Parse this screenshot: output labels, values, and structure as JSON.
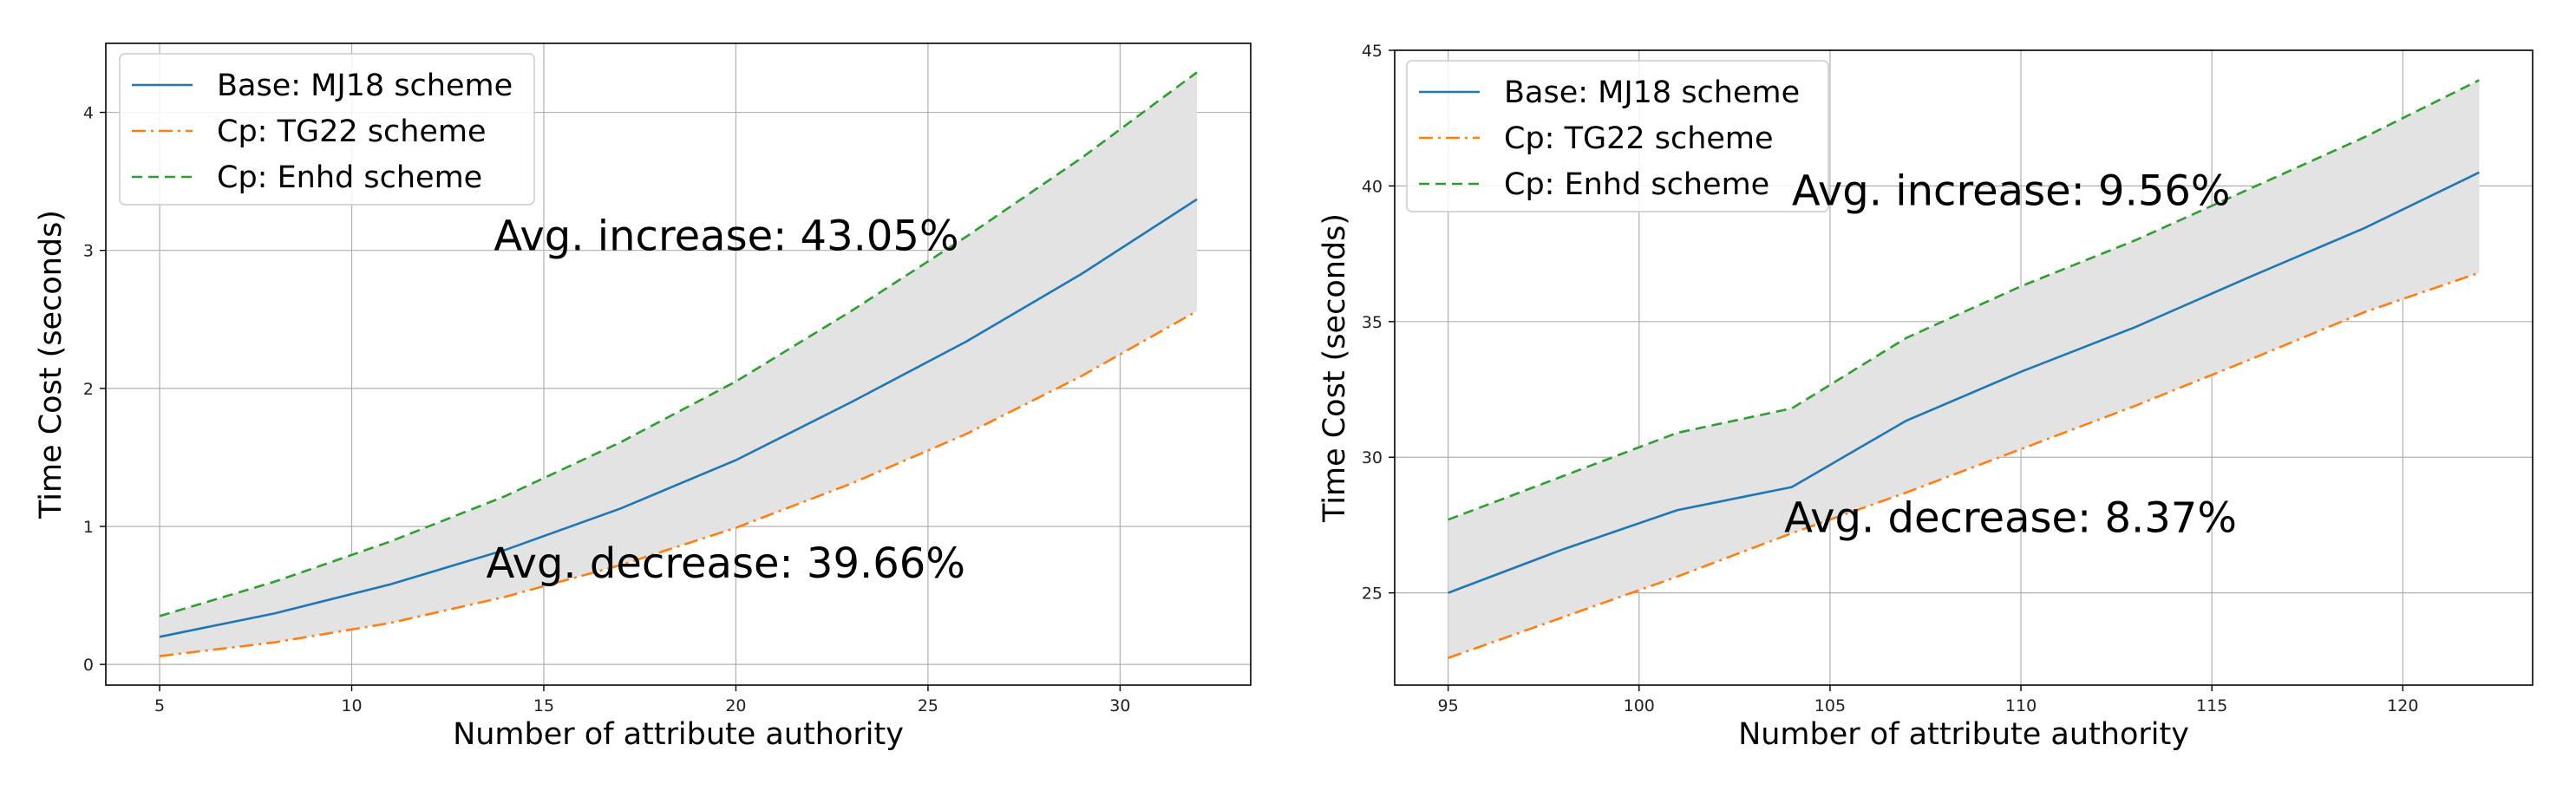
{
  "colors": {
    "base": "#1f77b4",
    "tg22": "#ff7f0e",
    "enhd": "#2ca02c",
    "band": "#e3e3e3"
  },
  "chart_data": [
    {
      "type": "line",
      "xlabel": "Number of attribute authority",
      "ylabel": "Time Cost (seconds)",
      "xlim": [
        3.6,
        33.4
      ],
      "ylim": [
        -0.15,
        4.5
      ],
      "xticks": [
        5,
        10,
        15,
        20,
        25,
        30
      ],
      "yticks": [
        0,
        1,
        2,
        3,
        4
      ],
      "grid": true,
      "legend_position": "top-left",
      "x": [
        5,
        8,
        11,
        14,
        17,
        20,
        23,
        26,
        29,
        32
      ],
      "series": [
        {
          "name": "Base: MJ18 scheme",
          "style": "solid",
          "values": [
            0.2,
            0.37,
            0.58,
            0.83,
            1.13,
            1.48,
            1.9,
            2.34,
            2.83,
            3.37
          ]
        },
        {
          "name": "Cp: TG22 scheme",
          "style": "dashdot",
          "values": [
            0.06,
            0.16,
            0.3,
            0.49,
            0.72,
            0.99,
            1.31,
            1.67,
            2.09,
            2.56
          ]
        },
        {
          "name": "Cp: Enhd scheme",
          "style": "dashed",
          "values": [
            0.35,
            0.6,
            0.89,
            1.22,
            1.61,
            2.05,
            2.56,
            3.1,
            3.67,
            4.29
          ]
        }
      ],
      "fill_between": [
        "Cp: TG22 scheme",
        "Cp: Enhd scheme"
      ],
      "annotations": [
        {
          "text": "Avg. increase: 43.05%",
          "x": 13.7,
          "y": 3.0
        },
        {
          "text": "Avg. decrease: 39.66%",
          "x": 13.5,
          "y": 0.63
        }
      ]
    },
    {
      "type": "line",
      "xlabel": "Number of attribute authority",
      "ylabel": "Time Cost (seconds)",
      "xlim": [
        93.6,
        123.4
      ],
      "ylim": [
        21.6,
        45
      ],
      "xticks": [
        95,
        100,
        105,
        110,
        115,
        120
      ],
      "yticks": [
        25,
        30,
        35,
        40,
        45
      ],
      "grid": true,
      "legend_position": "top-left",
      "x": [
        95,
        98,
        101,
        104,
        107,
        110,
        113,
        116,
        119,
        122
      ],
      "series": [
        {
          "name": "Base: MJ18 scheme",
          "style": "solid",
          "values": [
            25.0,
            26.6,
            28.05,
            28.9,
            31.35,
            33.15,
            34.8,
            36.65,
            38.45,
            40.5
          ]
        },
        {
          "name": "Cp: TG22 scheme",
          "style": "dashdot",
          "values": [
            22.6,
            24.1,
            25.6,
            27.2,
            28.7,
            30.3,
            31.9,
            33.6,
            35.35,
            36.8
          ]
        },
        {
          "name": "Cp: Enhd scheme",
          "style": "dashed",
          "values": [
            27.7,
            29.3,
            30.9,
            31.8,
            34.4,
            36.3,
            38.0,
            39.9,
            41.8,
            43.9
          ]
        }
      ],
      "fill_between": [
        "Cp: TG22 scheme",
        "Cp: Enhd scheme"
      ],
      "annotations": [
        {
          "text": "Avg. increase: 9.56%",
          "x": 104.0,
          "y": 39.3
        },
        {
          "text": "Avg. decrease: 8.37%",
          "x": 103.8,
          "y": 27.25
        }
      ]
    }
  ]
}
